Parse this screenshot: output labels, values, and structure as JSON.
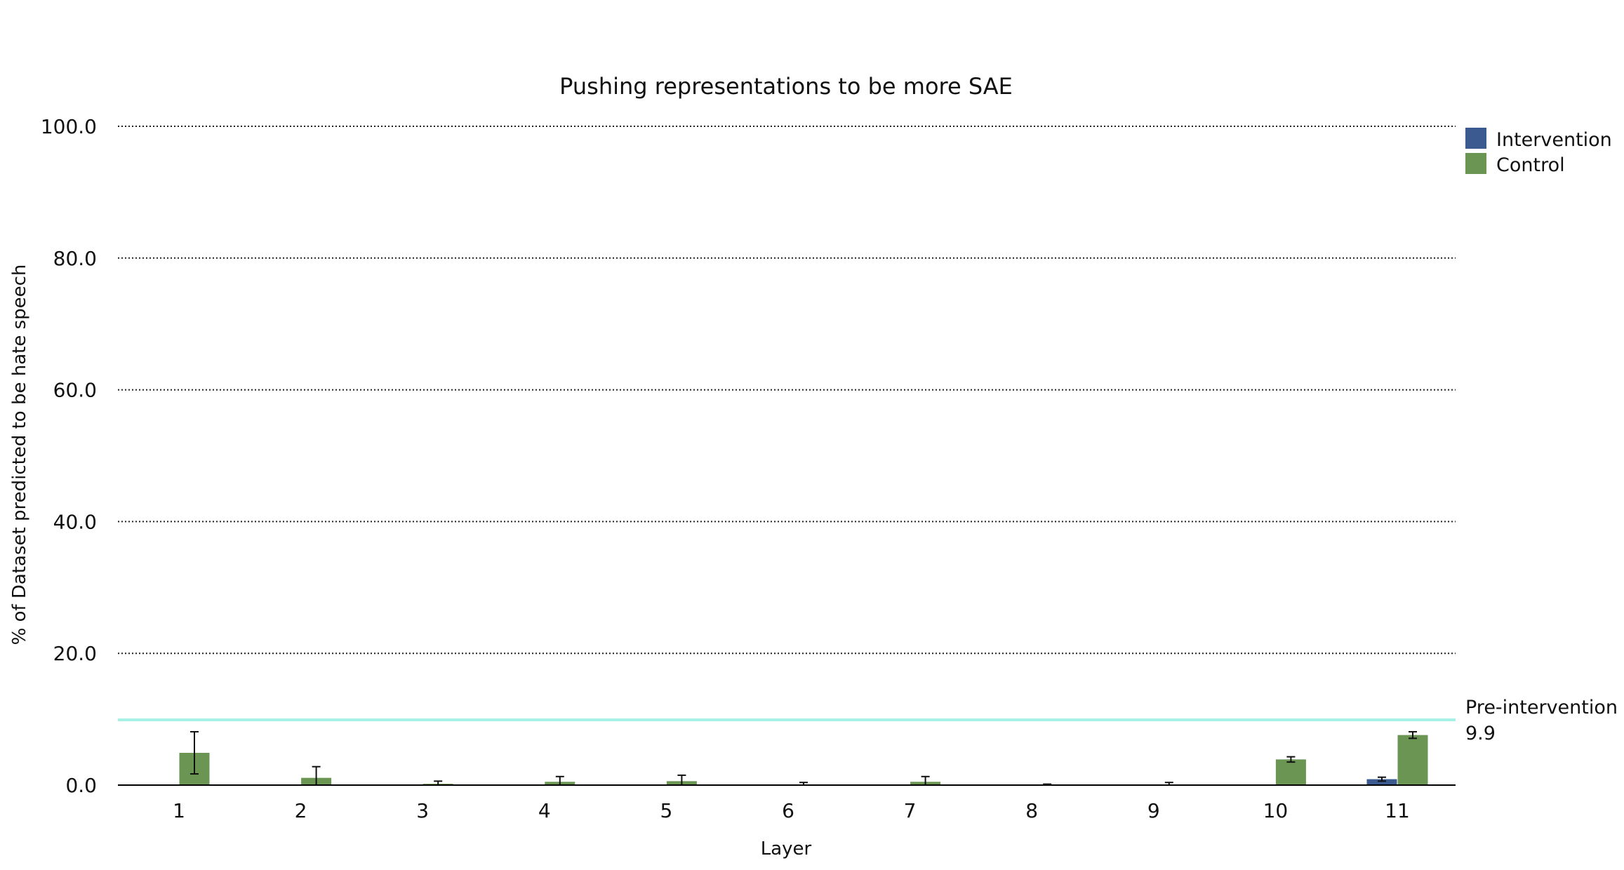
{
  "chart_data": {
    "type": "bar",
    "title": "Pushing representations to be more SAE",
    "xlabel": "Layer",
    "ylabel": "% of Dataset predicted to be hate speech",
    "ylim": [
      0,
      100
    ],
    "yticks": [
      "0.0",
      "20.0",
      "40.0",
      "60.0",
      "80.0",
      "100.0"
    ],
    "grid": "horizontal dotted",
    "legend_position": "top-right",
    "categories": [
      "1",
      "2",
      "3",
      "4",
      "5",
      "6",
      "7",
      "8",
      "9",
      "10",
      "11"
    ],
    "series": [
      {
        "name": "Intervention",
        "color": "#3b5a8f",
        "values": [
          0,
          0,
          0,
          0,
          0,
          0,
          0,
          0,
          0,
          0,
          0.9
        ],
        "errors": [
          0,
          0,
          0,
          0,
          0,
          0,
          0,
          0,
          0,
          0,
          0.3
        ]
      },
      {
        "name": "Control",
        "color": "#6a9553",
        "values": [
          4.9,
          1.1,
          0.2,
          0.5,
          0.6,
          0.1,
          0.5,
          0.05,
          0.1,
          3.9,
          7.6
        ],
        "errors": [
          3.2,
          1.7,
          0.4,
          0.8,
          0.9,
          0.3,
          0.8,
          0.1,
          0.3,
          0.4,
          0.5
        ]
      }
    ],
    "reference_line": {
      "label": "Pre-intervention",
      "value": 9.9,
      "value_label": "9.9",
      "color": "#a6f0e6"
    }
  }
}
